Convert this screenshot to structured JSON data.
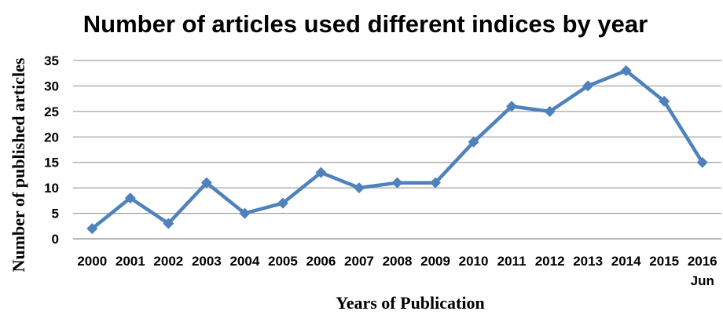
{
  "chart_data": {
    "type": "line",
    "title": "Number of articles used different indices by year",
    "xlabel": "Years of Publication",
    "ylabel": "Number of published articles",
    "categories": [
      "2000",
      "2001",
      "2002",
      "2003",
      "2004",
      "2005",
      "2006",
      "2007",
      "2008",
      "2009",
      "2010",
      "2011",
      "2012",
      "2013",
      "2014",
      "2015",
      "2016 Jun"
    ],
    "category_lines": [
      [
        "2000"
      ],
      [
        "2001"
      ],
      [
        "2002"
      ],
      [
        "2003"
      ],
      [
        "2004"
      ],
      [
        "2005"
      ],
      [
        "2006"
      ],
      [
        "2007"
      ],
      [
        "2008"
      ],
      [
        "2009"
      ],
      [
        "2010"
      ],
      [
        "2011"
      ],
      [
        "2012"
      ],
      [
        "2013"
      ],
      [
        "2014"
      ],
      [
        "2015"
      ],
      [
        "2016",
        "Jun"
      ]
    ],
    "series": [
      {
        "values": [
          2,
          8,
          3,
          11,
          5,
          7,
          13,
          10,
          11,
          11,
          19,
          26,
          25,
          30,
          33,
          27,
          15
        ]
      }
    ],
    "ylim": [
      0,
      35
    ],
    "yticks": [
      0,
      5,
      10,
      15,
      20,
      25,
      30,
      35
    ],
    "grid": true,
    "legend": "none",
    "line_color": "#4f81bd"
  }
}
